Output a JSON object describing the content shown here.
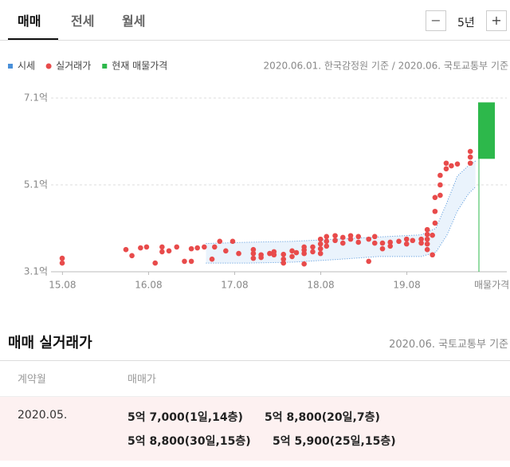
{
  "tabs": [
    "매매",
    "전세",
    "월세"
  ],
  "period": "5년",
  "chart_data": {
    "type": "scatter",
    "source": "2020.06.01. 한국감정원 기준 / 2020.06. 국토교통부 기준",
    "current_label": "매물가격",
    "xlim": [
      2015.45,
      2020.42
    ],
    "xticks": [
      {
        "value": 2015.583,
        "label": "15.08"
      },
      {
        "value": 2016.583,
        "label": "16.08"
      },
      {
        "value": 2017.583,
        "label": "17.08"
      },
      {
        "value": 2018.583,
        "label": "18.08"
      },
      {
        "value": 2019.583,
        "label": "19.08"
      }
    ],
    "ylim": [
      3.1,
      7.1
    ],
    "yticks": [
      {
        "value": 3.1,
        "label": "3.1억"
      },
      {
        "value": 5.1,
        "label": "5.1억"
      },
      {
        "value": 7.1,
        "label": "7.1억"
      }
    ],
    "grid": true,
    "series": [
      {
        "name": "시세",
        "color": "#4a90d9",
        "x": [
          2017.25,
          2017.75,
          2018.25,
          2018.75,
          2019.25,
          2019.75,
          2019.92,
          2020.05,
          2020.17,
          2020.3,
          2020.38
        ],
        "high": [
          3.75,
          3.78,
          3.8,
          3.85,
          3.9,
          3.95,
          4.1,
          4.7,
          5.3,
          5.55,
          5.65
        ],
        "low": [
          3.3,
          3.3,
          3.32,
          3.38,
          3.45,
          3.45,
          3.55,
          3.95,
          4.5,
          4.9,
          5.05
        ]
      },
      {
        "name": "실거래가",
        "color": "#e84b4b",
        "x": [
          2015.58,
          2015.58,
          2016.32,
          2016.39,
          2016.49,
          2016.56,
          2016.66,
          2016.74,
          2016.74,
          2016.82,
          2016.91,
          2017.0,
          2017.08,
          2017.08,
          2017.15,
          2017.23,
          2017.32,
          2017.35,
          2017.41,
          2017.48,
          2017.56,
          2017.63,
          2017.8,
          2017.8,
          2017.8,
          2017.89,
          2017.89,
          2017.99,
          2018.04,
          2018.04,
          2018.15,
          2018.15,
          2018.15,
          2018.25,
          2018.25,
          2018.3,
          2018.39,
          2018.39,
          2018.39,
          2018.39,
          2018.49,
          2018.49,
          2018.58,
          2018.58,
          2018.58,
          2018.58,
          2018.65,
          2018.65,
          2018.65,
          2018.75,
          2018.75,
          2018.84,
          2018.84,
          2018.93,
          2018.93,
          2019.02,
          2019.02,
          2019.14,
          2019.14,
          2019.21,
          2019.21,
          2019.3,
          2019.3,
          2019.39,
          2019.39,
          2019.49,
          2019.58,
          2019.58,
          2019.65,
          2019.75,
          2019.75,
          2019.82,
          2019.82,
          2019.82,
          2019.82,
          2019.82,
          2019.88,
          2019.88,
          2019.91,
          2019.91,
          2019.91,
          2019.97,
          2019.97,
          2019.97,
          2020.04,
          2020.04,
          2020.1,
          2020.17,
          2020.32,
          2020.32,
          2020.32
        ],
        "values": [
          3.41,
          3.3,
          3.61,
          3.47,
          3.65,
          3.67,
          3.3,
          3.67,
          3.56,
          3.58,
          3.67,
          3.34,
          3.63,
          3.34,
          3.65,
          3.67,
          3.39,
          3.67,
          3.8,
          3.58,
          3.8,
          3.52,
          3.61,
          3.52,
          3.41,
          3.49,
          3.43,
          3.52,
          3.56,
          3.49,
          3.5,
          3.39,
          3.3,
          3.58,
          3.45,
          3.54,
          3.67,
          3.6,
          3.52,
          3.28,
          3.67,
          3.56,
          3.85,
          3.74,
          3.63,
          3.52,
          3.91,
          3.8,
          3.69,
          3.93,
          3.82,
          3.89,
          3.76,
          3.93,
          3.85,
          3.91,
          3.78,
          3.85,
          3.34,
          3.91,
          3.76,
          3.76,
          3.63,
          3.78,
          3.69,
          3.8,
          3.85,
          3.74,
          3.82,
          3.85,
          3.76,
          4.07,
          3.96,
          3.85,
          3.74,
          3.61,
          3.94,
          3.49,
          4.81,
          4.49,
          4.22,
          5.32,
          5.1,
          4.86,
          5.6,
          5.47,
          5.54,
          5.58,
          5.87,
          5.74,
          5.6
        ]
      },
      {
        "name": "현재 매물가격",
        "color": "#2db84b",
        "low": 5.7,
        "high": 7.0
      }
    ]
  },
  "table": {
    "title": "매매 실거래가",
    "source": "2020.06. 국토교통부 기준",
    "columns": [
      "계약월",
      "매매가"
    ],
    "rows": [
      [
        "2020.05.",
        [
          "5억 7,000(1일,14층)",
          "5억 8,800(20일,7층)",
          "5억 8,800(30일,15층)",
          "5억 5,900(25일,15층)"
        ]
      ]
    ]
  }
}
